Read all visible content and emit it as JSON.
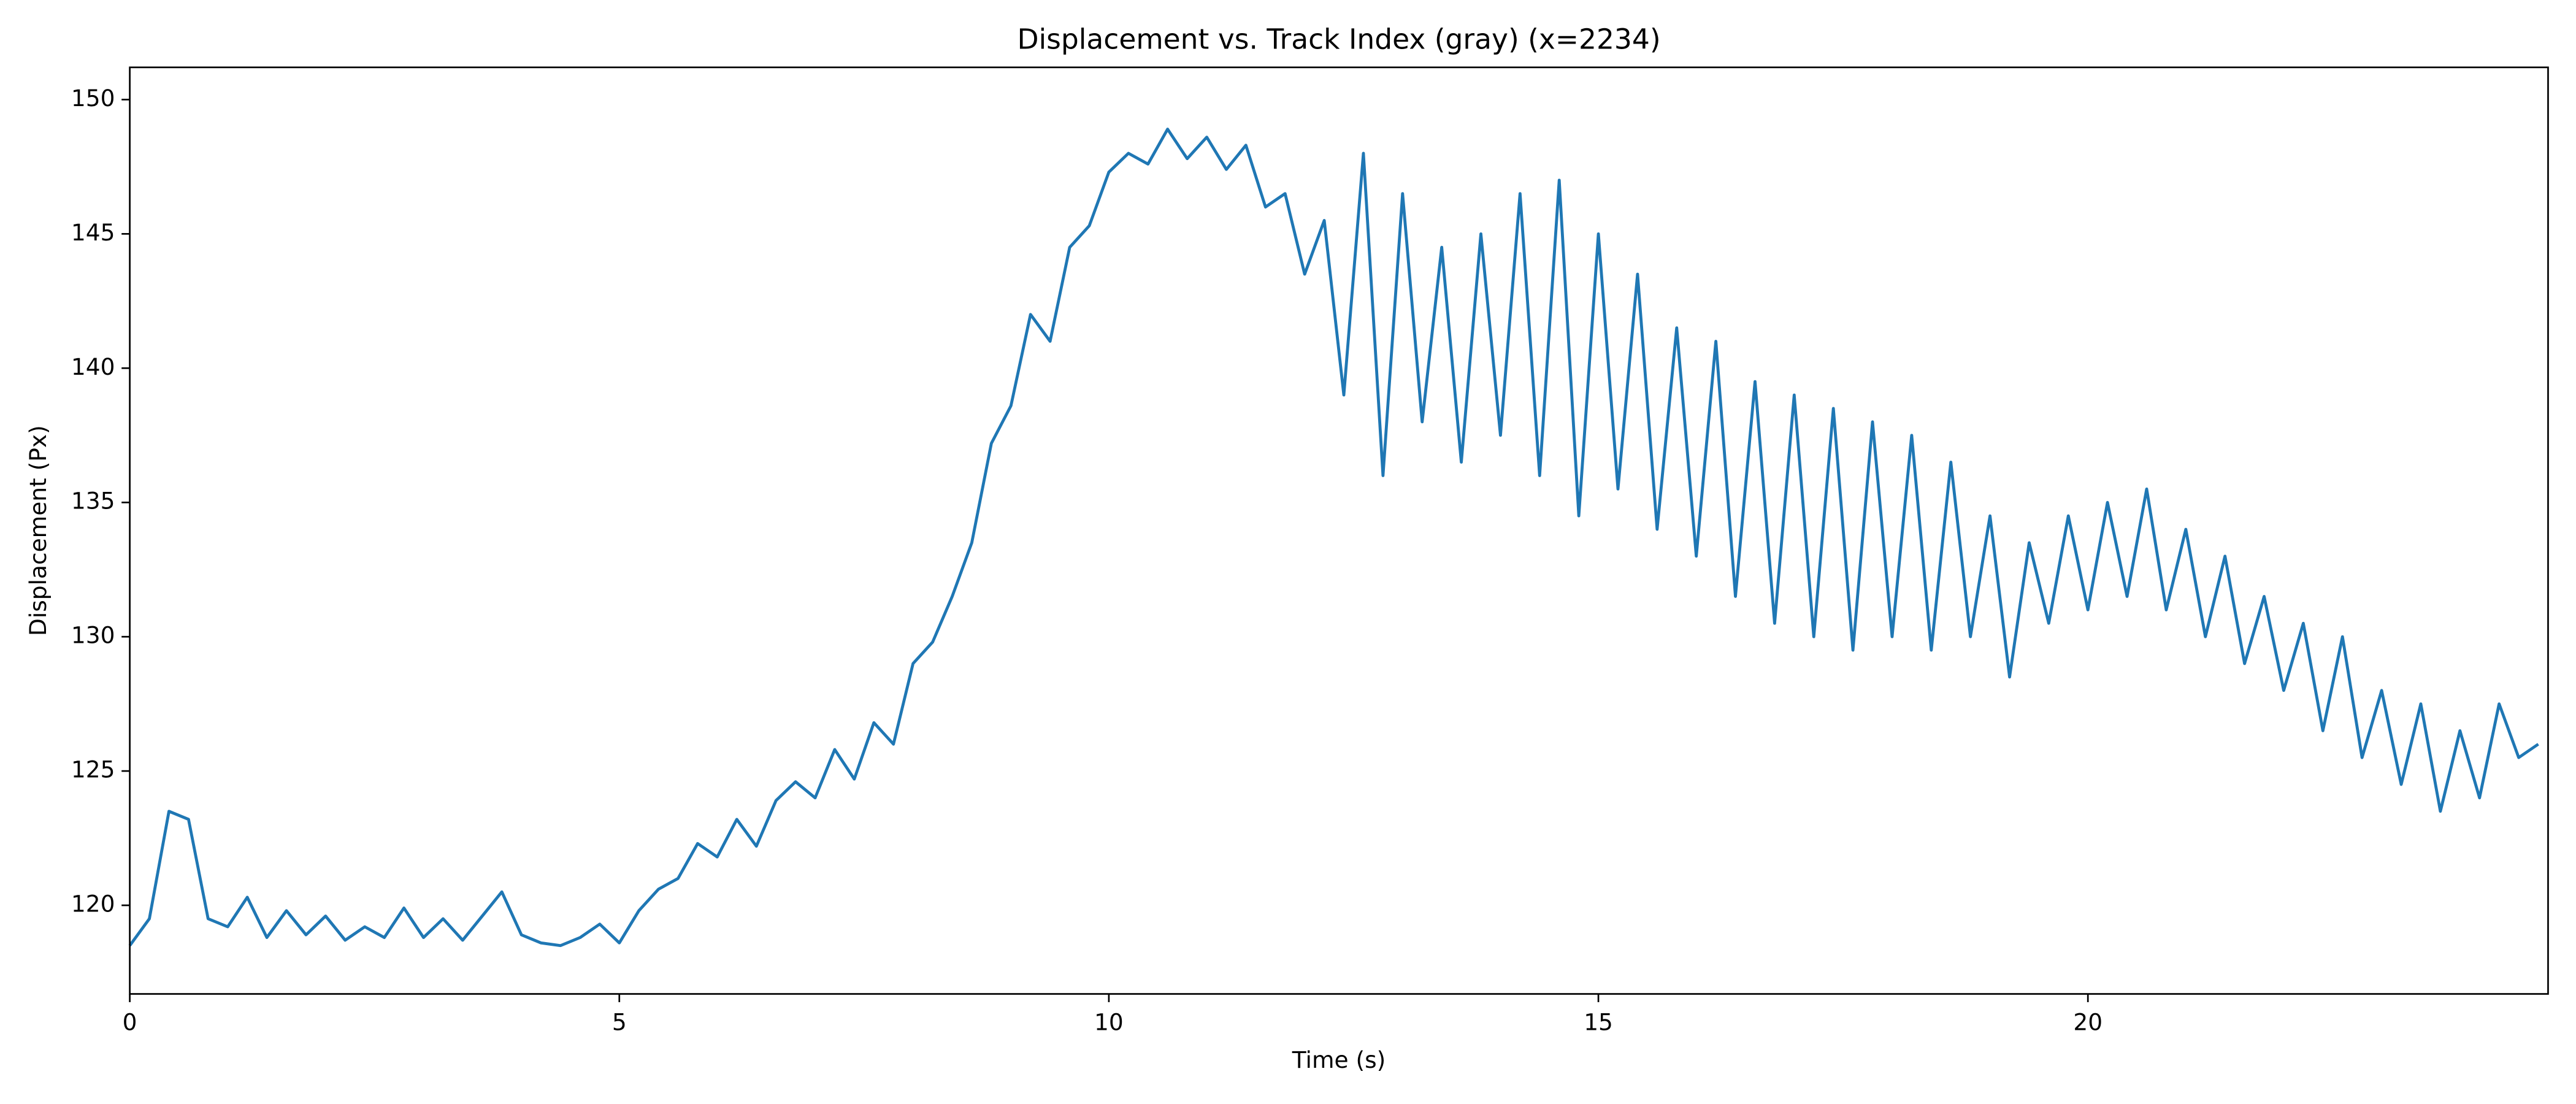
{
  "chart_data": {
    "type": "line",
    "title": "Displacement vs. Track Index (gray) (x=2234)",
    "x_label": "Time (s)",
    "y_label": "Displacement (Px)",
    "x": [
      0,
      0.2,
      0.4,
      0.6,
      0.8,
      1.0,
      1.2,
      1.4,
      1.6,
      1.8,
      2.0,
      2.2,
      2.4,
      2.6,
      2.8,
      3.0,
      3.2,
      3.4,
      3.6,
      3.8,
      4.0,
      4.2,
      4.4,
      4.6,
      4.8,
      5.0,
      5.2,
      5.4,
      5.6,
      5.8,
      6.0,
      6.2,
      6.4,
      6.6,
      6.8,
      7.0,
      7.2,
      7.4,
      7.6,
      7.8,
      8.0,
      8.2,
      8.4,
      8.6,
      8.8,
      9.0,
      9.2,
      9.4,
      9.6,
      9.8,
      10.0,
      10.2,
      10.4,
      10.6,
      10.8,
      11.0,
      11.2,
      11.4,
      11.6,
      11.8,
      12.0,
      12.2,
      12.4,
      12.6,
      12.8,
      13.0,
      13.2,
      13.4,
      13.6,
      13.8,
      14.0,
      14.2,
      14.4,
      14.6,
      14.8,
      15.0,
      15.2,
      15.4,
      15.6,
      15.8,
      16.0,
      16.2,
      16.4,
      16.6,
      16.8,
      17.0,
      17.2,
      17.4,
      17.6,
      17.8,
      18.0,
      18.2,
      18.4,
      18.6,
      18.8,
      19.0,
      19.2,
      19.4,
      19.6,
      19.8,
      20.0,
      20.2,
      20.4,
      20.6,
      20.8,
      21.0,
      21.2,
      21.4,
      21.6,
      21.8,
      22.0,
      22.2,
      22.4,
      22.6,
      22.8,
      23.0,
      23.2,
      23.4,
      23.6,
      23.8,
      24.0,
      24.2,
      24.4,
      24.6
    ],
    "series": [
      {
        "color": "#1f77b4",
        "values": [
          118.5,
          119.5,
          123.5,
          123.2,
          119.5,
          119.2,
          120.3,
          118.8,
          119.8,
          118.9,
          119.6,
          118.7,
          119.2,
          118.8,
          119.9,
          118.8,
          119.5,
          118.7,
          119.6,
          120.5,
          118.9,
          118.6,
          118.5,
          118.8,
          119.3,
          118.6,
          119.8,
          120.6,
          121.0,
          122.3,
          121.8,
          123.2,
          122.2,
          123.9,
          124.6,
          124.0,
          125.8,
          124.7,
          126.8,
          126.0,
          129.0,
          129.8,
          131.5,
          133.5,
          137.2,
          138.6,
          142.0,
          141.0,
          144.5,
          145.3,
          147.3,
          148.0,
          147.6,
          148.9,
          147.8,
          148.6,
          147.4,
          148.3,
          146.0,
          146.5,
          143.5,
          145.5,
          139.0,
          148.0,
          136.0,
          146.5,
          138.0,
          144.5,
          136.5,
          145.0,
          137.5,
          146.5,
          136.0,
          147.0,
          134.5,
          145.0,
          135.5,
          143.5,
          134.0,
          141.5,
          133.0,
          141.0,
          131.5,
          139.5,
          130.5,
          139.0,
          130.0,
          138.5,
          129.5,
          138.0,
          130.0,
          137.5,
          129.5,
          136.5,
          130.0,
          134.5,
          128.5,
          133.5,
          130.5,
          134.5,
          131.0,
          135.0,
          131.5,
          135.5,
          131.0,
          134.0,
          130.0,
          133.0,
          129.0,
          131.5,
          128.0,
          130.5,
          126.5,
          130.0,
          125.5,
          128.0,
          124.5,
          127.5,
          123.5,
          126.5,
          124.0,
          127.5,
          125.5,
          126.0
        ]
      }
    ],
    "xlim": [
      0,
      24.7
    ],
    "ylim": [
      116.7,
      151.2
    ],
    "xticks": [
      0,
      5,
      10,
      15,
      20
    ],
    "yticks": [
      120,
      125,
      130,
      135,
      140,
      145,
      150
    ],
    "grid": false
  }
}
